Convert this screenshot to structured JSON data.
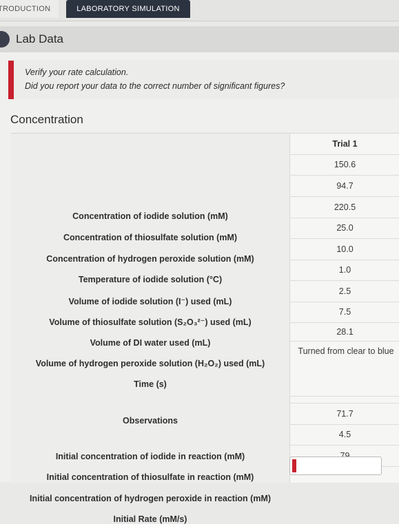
{
  "tabs": [
    {
      "label": "TRODUCTION"
    },
    {
      "label": "LABORATORY SIMULATION"
    }
  ],
  "panel": {
    "title": "Lab Data"
  },
  "alert": {
    "line1": "Verify your rate calculation.",
    "line2": "Did you report your data to the correct number of significant figures?"
  },
  "section": {
    "title": "Concentration"
  },
  "table": {
    "header": "Trial 1",
    "rows": [
      {
        "label": "Concentration of iodide solution (mM)",
        "value": "150.6"
      },
      {
        "label": "Concentration of thiosulfate solution (mM)",
        "value": "94.7"
      },
      {
        "label": "Concentration of hydrogen peroxide solution (mM)",
        "value": "220.5"
      },
      {
        "label": "Temperature of iodide solution (°C)",
        "value": "25.0"
      },
      {
        "label": "Volume of iodide solution (I⁻) used (mL)",
        "value": "10.0"
      },
      {
        "label": "Volume of thiosulfate solution (S₂O₃²⁻) used (mL)",
        "value": "1.0"
      },
      {
        "label": "Volume of DI water used (mL)",
        "value": "2.5"
      },
      {
        "label": "Volume of hydrogen peroxide solution (H₂O₂) used (mL)",
        "value": "7.5"
      },
      {
        "label": "Time (s)",
        "value": "28.1"
      },
      {
        "label": "Observations",
        "value": "Turned from clear to blue"
      },
      {
        "label": "Initial concentration of iodide in reaction (mM)",
        "value": "71.7"
      },
      {
        "label": "Initial concentration of thiosulfate in reaction (mM)",
        "value": "4.5"
      },
      {
        "label": "Initial concentration of hydrogen peroxide in reaction (mM)",
        "value": "79"
      },
      {
        "label": "Initial Rate (mM/s)",
        "value": ""
      }
    ]
  },
  "colors": {
    "accent_red": "#c8202e",
    "tab_dark": "#2c3340"
  }
}
